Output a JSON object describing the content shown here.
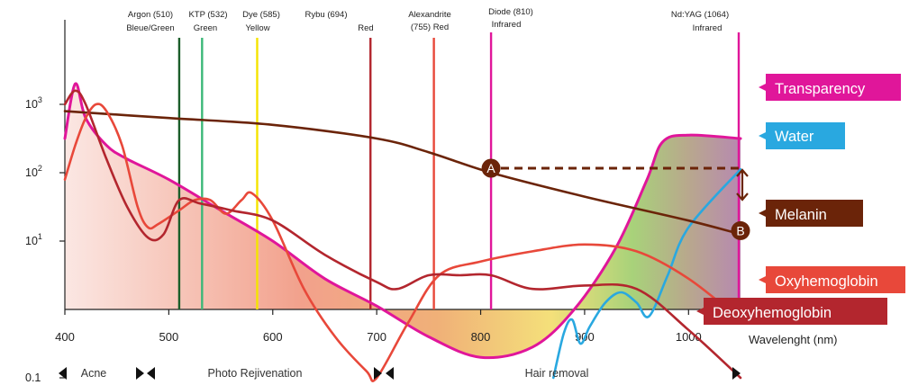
{
  "chart_data": {
    "type": "line",
    "xlabel": "Wavelenght (nm)",
    "ylabel": "",
    "xlim": [
      400,
      1050
    ],
    "x_ticks": [
      "400",
      "500",
      "600",
      "700",
      "800",
      "900",
      "1000"
    ],
    "y_ticks": [
      {
        "value": 0.1,
        "base": "0.1",
        "exp": ""
      },
      {
        "value": 10,
        "base": "10",
        "exp": "1"
      },
      {
        "value": 100,
        "base": "10",
        "exp": "2"
      },
      {
        "value": 1000,
        "base": "10",
        "exp": "3"
      }
    ],
    "y_scale": "log",
    "lasers": [
      {
        "wavelength": 510,
        "name": "Argon (510)",
        "sub": "Bleue/Green",
        "color": "#1b5e2a"
      },
      {
        "wavelength": 532,
        "name": "KTP (532)",
        "sub": "Green",
        "color": "#3cb878"
      },
      {
        "wavelength": 585,
        "name": "Dye (585)",
        "sub": "Yellow",
        "color": "#f5e400"
      },
      {
        "wavelength": 694,
        "name": "Rybu (694)",
        "sub": "Red",
        "color": "#b3262e"
      },
      {
        "wavelength": 755,
        "name": "Alexandrite",
        "sub": "(755) Red",
        "color": "#e8483a"
      },
      {
        "wavelength": 810,
        "name": "Diode (810)",
        "sub": "Infrared",
        "color": "#e0169a"
      },
      {
        "wavelength": 1064,
        "name": "Nd:YAG (1064)",
        "sub": "Infrared",
        "color": "#e0169a"
      }
    ],
    "series": [
      {
        "name": "Transparency",
        "color": "#e0169a",
        "points": [
          [
            400,
            2.5
          ],
          [
            410,
            3.3
          ],
          [
            420,
            2.8
          ],
          [
            440,
            2.4
          ],
          [
            460,
            2.2
          ],
          [
            500,
            1.9
          ],
          [
            550,
            1.45
          ],
          [
            600,
            1.0
          ],
          [
            650,
            0.45
          ],
          [
            700,
            0.05
          ],
          [
            750,
            -0.4
          ],
          [
            800,
            -0.7
          ],
          [
            850,
            -0.55
          ],
          [
            890,
            0.0
          ],
          [
            930,
            0.9
          ],
          [
            960,
            1.9
          ],
          [
            975,
            2.45
          ],
          [
            1000,
            2.55
          ],
          [
            1050,
            2.5
          ]
        ]
      },
      {
        "name": "Water",
        "color": "#29a8e0",
        "points": [
          [
            870,
            -1.0
          ],
          [
            880,
            -0.35
          ],
          [
            888,
            -0.15
          ],
          [
            896,
            -0.5
          ],
          [
            905,
            -0.25
          ],
          [
            920,
            0.1
          ],
          [
            935,
            0.25
          ],
          [
            950,
            0.1
          ],
          [
            962,
            -0.1
          ],
          [
            980,
            0.5
          ],
          [
            1000,
            1.2
          ],
          [
            1050,
            2.05
          ]
        ]
      },
      {
        "name": "Melanin",
        "color": "#6b2409",
        "points": [
          [
            400,
            2.9
          ],
          [
            500,
            2.8
          ],
          [
            600,
            2.7
          ],
          [
            700,
            2.5
          ],
          [
            750,
            2.3
          ],
          [
            810,
            2.0
          ],
          [
            900,
            1.65
          ],
          [
            1000,
            1.3
          ],
          [
            1050,
            1.1
          ]
        ]
      },
      {
        "name": "Oxyhemoglobin",
        "color": "#e8483a",
        "points": [
          [
            400,
            1.9
          ],
          [
            410,
            2.4
          ],
          [
            420,
            2.8
          ],
          [
            430,
            3.0
          ],
          [
            440,
            2.9
          ],
          [
            455,
            2.4
          ],
          [
            470,
            1.5
          ],
          [
            480,
            1.2
          ],
          [
            490,
            1.25
          ],
          [
            510,
            1.45
          ],
          [
            525,
            1.6
          ],
          [
            540,
            1.6
          ],
          [
            555,
            1.4
          ],
          [
            570,
            1.6
          ],
          [
            580,
            1.7
          ],
          [
            600,
            1.3
          ],
          [
            630,
            0.3
          ],
          [
            660,
            -0.4
          ],
          [
            690,
            -0.9
          ],
          [
            700,
            -1.0
          ],
          [
            730,
            -0.2
          ],
          [
            760,
            0.5
          ],
          [
            800,
            0.7
          ],
          [
            850,
            0.85
          ],
          [
            900,
            0.95
          ],
          [
            950,
            0.85
          ],
          [
            1000,
            0.45
          ],
          [
            1050,
            -0.15
          ]
        ]
      },
      {
        "name": "Deoxyhemoglobin",
        "color": "#b3262e",
        "points": [
          [
            400,
            3.0
          ],
          [
            410,
            3.2
          ],
          [
            420,
            3.0
          ],
          [
            440,
            2.2
          ],
          [
            460,
            1.5
          ],
          [
            480,
            1.05
          ],
          [
            495,
            1.1
          ],
          [
            510,
            1.6
          ],
          [
            530,
            1.55
          ],
          [
            560,
            1.45
          ],
          [
            600,
            1.3
          ],
          [
            650,
            0.8
          ],
          [
            700,
            0.4
          ],
          [
            720,
            0.3
          ],
          [
            750,
            0.5
          ],
          [
            780,
            0.5
          ],
          [
            810,
            0.5
          ],
          [
            850,
            0.3
          ],
          [
            900,
            0.35
          ],
          [
            950,
            0.3
          ],
          [
            1000,
            -0.3
          ],
          [
            1050,
            -1.0
          ]
        ]
      }
    ],
    "points_of_interest": [
      {
        "label": "A",
        "wavelength": 810,
        "log_value": 2.0
      },
      {
        "label": "B",
        "wavelength": 1050,
        "log_value": 1.1
      }
    ],
    "legend": [
      {
        "label": "Transparency",
        "color": "#e0169a"
      },
      {
        "label": "Water",
        "color": "#29a8e0"
      },
      {
        "label": "Melanin",
        "color": "#6b2409"
      },
      {
        "label": "Oxyhemoglobin",
        "color": "#e8483a"
      },
      {
        "label": "Deoxyhemoglobin",
        "color": "#b3262e"
      }
    ],
    "treatment_zones": [
      {
        "label": "Acne",
        "from": 400,
        "to": 475
      },
      {
        "label": "Photo Rejivenation",
        "from": 475,
        "to": 700
      },
      {
        "label": "Hair removal",
        "from": 700,
        "to": 1050
      }
    ]
  }
}
